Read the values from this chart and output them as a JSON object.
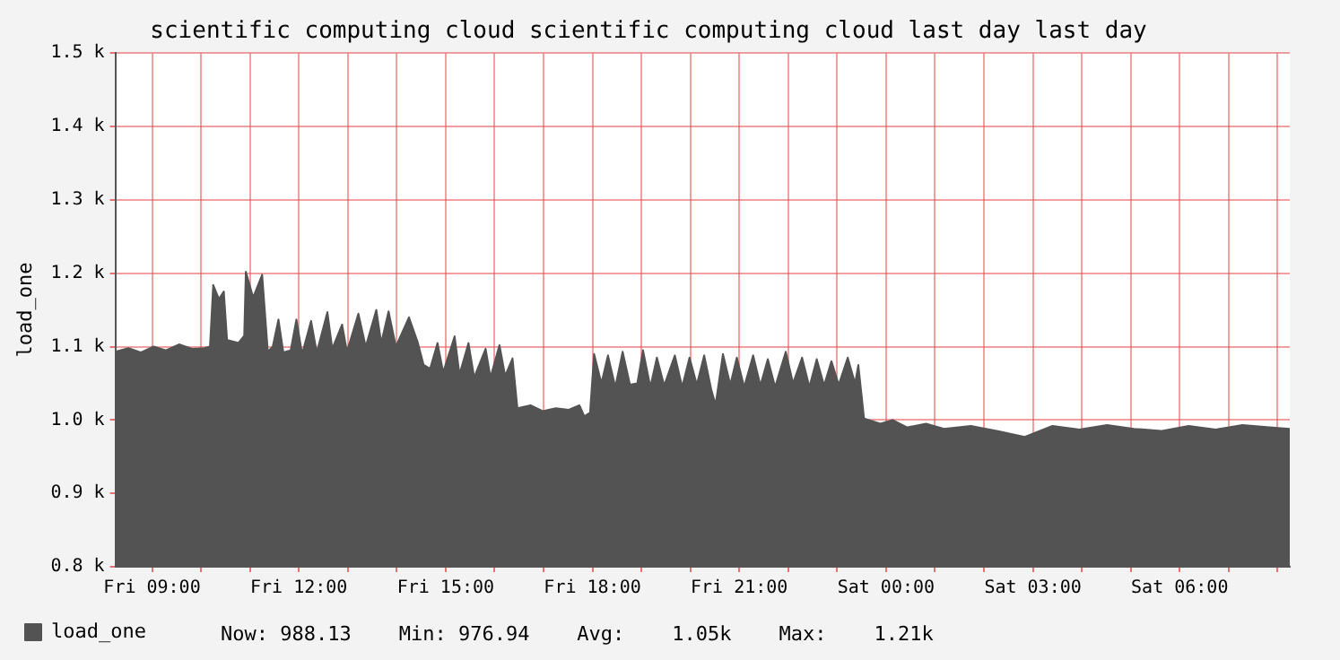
{
  "chart_data": {
    "type": "area",
    "title": "scientific computing cloud scientific computing cloud last day last day",
    "ylabel": "load_one",
    "x": [
      "--01-05T08:15",
      "--01-05T08:31",
      "--01-05T08:46",
      "--01-05T09:02",
      "--01-05T09:17",
      "--01-05T09:33",
      "--01-05T09:49",
      "--01-05T10:04",
      "--01-05T10:11",
      "--01-05T10:15",
      "--01-05T10:22",
      "--01-05T10:28",
      "--01-05T10:32",
      "--01-05T10:46",
      "--01-05T10:53",
      "--01-05T10:55",
      "--01-05T11:04",
      "--01-05T11:15",
      "--01-05T11:22",
      "--01-05T11:28",
      "--01-05T11:35",
      "--01-05T11:41",
      "--01-05T11:50",
      "--01-05T11:57",
      "--01-05T12:04",
      "--01-05T12:15",
      "--01-05T12:22",
      "--01-05T12:35",
      "--01-05T12:41",
      "--01-05T12:53",
      "--01-05T12:59",
      "--01-05T13:13",
      "--01-05T13:22",
      "--01-05T13:35",
      "--01-05T13:41",
      "--01-05T13:50",
      "--01-05T13:59",
      "--01-05T14:15",
      "--01-05T14:26",
      "--01-05T14:33",
      "--01-05T14:41",
      "--01-05T14:50",
      "--01-05T14:57",
      "--01-05T15:11",
      "--01-05T15:17",
      "--01-05T15:28",
      "--01-05T15:35",
      "--01-05T15:49",
      "--01-05T15:55",
      "--01-05T16:06",
      "--01-05T16:13",
      "--01-05T16:22",
      "--01-05T16:28",
      "--01-05T16:44",
      "--01-05T16:59",
      "--01-05T17:15",
      "--01-05T17:31",
      "--01-05T17:44",
      "--01-05T17:50",
      "--01-05T17:57",
      "--01-05T18:02",
      "--01-05T18:11",
      "--01-05T18:19",
      "--01-05T18:28",
      "--01-05T18:37",
      "--01-05T18:46",
      "--01-05T18:55",
      "--01-05T19:02",
      "--01-05T19:11",
      "--01-05T19:19",
      "--01-05T19:28",
      "--01-05T19:41",
      "--01-05T19:50",
      "--01-05T19:59",
      "--01-05T20:08",
      "--01-05T20:17",
      "--01-05T20:26",
      "--01-05T20:31",
      "--01-05T20:40",
      "--01-05T20:49",
      "--01-05T20:57",
      "--01-05T21:06",
      "--01-05T21:17",
      "--01-05T21:26",
      "--01-05T21:35",
      "--01-05T21:44",
      "--01-05T21:57",
      "--01-05T22:06",
      "--01-05T22:17",
      "--01-05T22:26",
      "--01-05T22:35",
      "--01-05T22:44",
      "--01-05T22:53",
      "--01-05T23:02",
      "--01-05T23:13",
      "--01-05T23:22",
      "--01-05T23:26",
      "--01-05T23:33",
      "--01-05T23:53",
      "--01-06T00:08",
      "--01-06T00:26",
      "--01-06T00:49",
      "--01-06T01:11",
      "--01-06T01:44",
      "--01-06T02:17",
      "--01-06T02:50",
      "--01-06T03:24",
      "--01-06T03:57",
      "--01-06T04:31",
      "--01-06T05:04",
      "--01-06T05:37",
      "--01-06T06:11",
      "--01-06T06:44",
      "--01-06T07:17",
      "--01-06T07:50",
      "--01-06T08:15"
    ],
    "series": [
      {
        "name": "load_one",
        "color": "#535353",
        "values": [
          1093,
          1098,
          1092,
          1100,
          1095,
          1103,
          1097,
          1098,
          1100,
          1184,
          1165,
          1175,
          1109,
          1105,
          1115,
          1202,
          1167,
          1198,
          1093,
          1100,
          1137,
          1092,
          1095,
          1137,
          1090,
          1135,
          1092,
          1147,
          1097,
          1130,
          1093,
          1145,
          1100,
          1150,
          1105,
          1148,
          1100,
          1140,
          1105,
          1075,
          1070,
          1105,
          1065,
          1114,
          1062,
          1105,
          1058,
          1097,
          1058,
          1102,
          1060,
          1084,
          1016,
          1020,
          1012,
          1016,
          1014,
          1020,
          1005,
          1010,
          1090,
          1050,
          1088,
          1045,
          1093,
          1048,
          1050,
          1095,
          1045,
          1085,
          1047,
          1088,
          1045,
          1085,
          1048,
          1088,
          1040,
          1021,
          1090,
          1048,
          1085,
          1045,
          1088,
          1047,
          1083,
          1045,
          1093,
          1050,
          1085,
          1045,
          1083,
          1047,
          1080,
          1048,
          1085,
          1050,
          1075,
          1002,
          995,
          1000,
          990,
          995,
          988,
          992,
          985,
          977,
          992,
          987,
          993,
          988,
          985,
          992,
          987,
          993,
          990,
          988
        ]
      }
    ],
    "xlim": [
      "--01-05T08:15",
      "--01-06T08:15"
    ],
    "xticks": [
      {
        "value": "--01-05T09:00",
        "label": "Fri 09:00"
      },
      {
        "value": "--01-05T10:00",
        "label": null
      },
      {
        "value": "--01-05T11:00",
        "label": null
      },
      {
        "value": "--01-05T12:00",
        "label": "Fri 12:00"
      },
      {
        "value": "--01-05T13:00",
        "label": null
      },
      {
        "value": "--01-05T14:00",
        "label": null
      },
      {
        "value": "--01-05T15:00",
        "label": "Fri 15:00"
      },
      {
        "value": "--01-05T16:00",
        "label": null
      },
      {
        "value": "--01-05T17:00",
        "label": null
      },
      {
        "value": "--01-05T18:00",
        "label": "Fri 18:00"
      },
      {
        "value": "--01-05T19:00",
        "label": null
      },
      {
        "value": "--01-05T20:00",
        "label": null
      },
      {
        "value": "--01-05T21:00",
        "label": "Fri 21:00"
      },
      {
        "value": "--01-05T22:00",
        "label": null
      },
      {
        "value": "--01-05T23:00",
        "label": null
      },
      {
        "value": "--01-06T00:00",
        "label": "Sat 00:00"
      },
      {
        "value": "--01-06T01:00",
        "label": null
      },
      {
        "value": "--01-06T02:00",
        "label": null
      },
      {
        "value": "--01-06T03:00",
        "label": "Sat 03:00"
      },
      {
        "value": "--01-06T04:00",
        "label": null
      },
      {
        "value": "--01-06T05:00",
        "label": null
      },
      {
        "value": "--01-06T06:00",
        "label": "Sat 06:00"
      },
      {
        "value": "--01-06T07:00",
        "label": null
      },
      {
        "value": "--01-06T08:00",
        "label": null
      }
    ],
    "ylim": [
      800,
      1500
    ],
    "yticks": [
      {
        "value": 800,
        "label": "0.8 k"
      },
      {
        "value": 900,
        "label": "0.9 k"
      },
      {
        "value": 1000,
        "label": "1.0 k"
      },
      {
        "value": 1100,
        "label": "1.1 k"
      },
      {
        "value": 1200,
        "label": "1.2 k"
      },
      {
        "value": 1300,
        "label": "1.3 k"
      },
      {
        "value": 1400,
        "label": "1.4 k"
      },
      {
        "value": 1500,
        "label": "1.5 k"
      }
    ],
    "grid": true,
    "legend": "bottom left",
    "marker": "none",
    "annotations": [
      "Now: 988.13    Min: 976.94    Avg:    1.05k    Max:    1.21k"
    ]
  }
}
